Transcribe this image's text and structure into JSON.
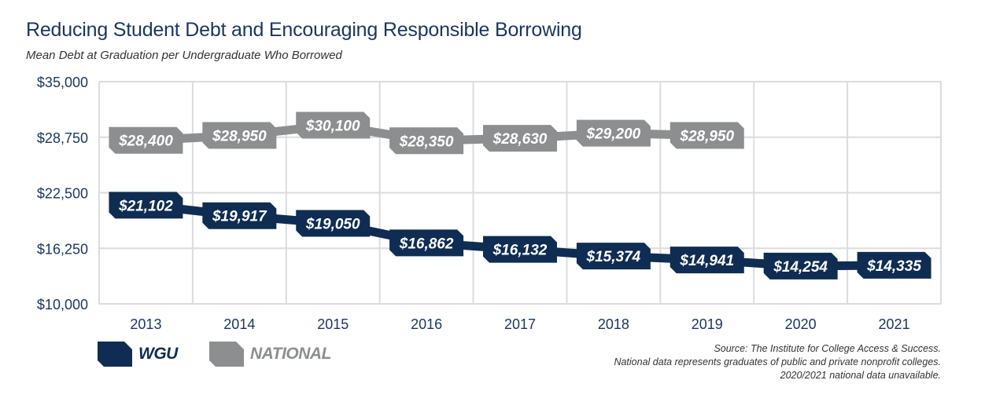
{
  "title": "Reducing Student Debt and Encouraging Responsible Borrowing",
  "subtitle": "Mean Debt at Graduation per Undergraduate Who Borrowed",
  "legend": {
    "wgu": "WGU",
    "national": "NATIONAL"
  },
  "source_lines": [
    "Source: The Institute for College Access & Success.",
    "National data represents graduates of public and private nonprofit colleges.",
    "2020/2021 national data unavailable."
  ],
  "colors": {
    "wgu": "#0f2d52",
    "national": "#8c8e90",
    "grid": "#dcdcdc",
    "axis_text": "#1b365d"
  },
  "chart_data": {
    "type": "line",
    "title": "Reducing Student Debt and Encouraging Responsible Borrowing",
    "subtitle": "Mean Debt at Graduation per Undergraduate Who Borrowed",
    "xlabel": "",
    "ylabel": "",
    "x": [
      "2013",
      "2014",
      "2015",
      "2016",
      "2017",
      "2018",
      "2019",
      "2020",
      "2021"
    ],
    "ylim": [
      10000,
      35000
    ],
    "yticks": [
      10000,
      16250,
      22500,
      28750,
      35000
    ],
    "ytick_labels": [
      "$10,000",
      "$16,250",
      "$22,500",
      "$28,750",
      "$35,000"
    ],
    "grid": true,
    "legend_position": "bottom-left",
    "series": [
      {
        "name": "WGU",
        "values": [
          21102,
          19917,
          19050,
          16862,
          16132,
          15374,
          14941,
          14254,
          14335
        ],
        "labels": [
          "$21,102",
          "$19,917",
          "$19,050",
          "$16,862",
          "$16,132",
          "$15,374",
          "$14,941",
          "$14,254",
          "$14,335"
        ]
      },
      {
        "name": "NATIONAL",
        "values": [
          28400,
          28950,
          30100,
          28350,
          28630,
          29200,
          28950,
          null,
          null
        ],
        "labels": [
          "$28,400",
          "$28,950",
          "$30,100",
          "$28,350",
          "$28,630",
          "$29,200",
          "$28,950",
          "",
          ""
        ]
      }
    ]
  }
}
